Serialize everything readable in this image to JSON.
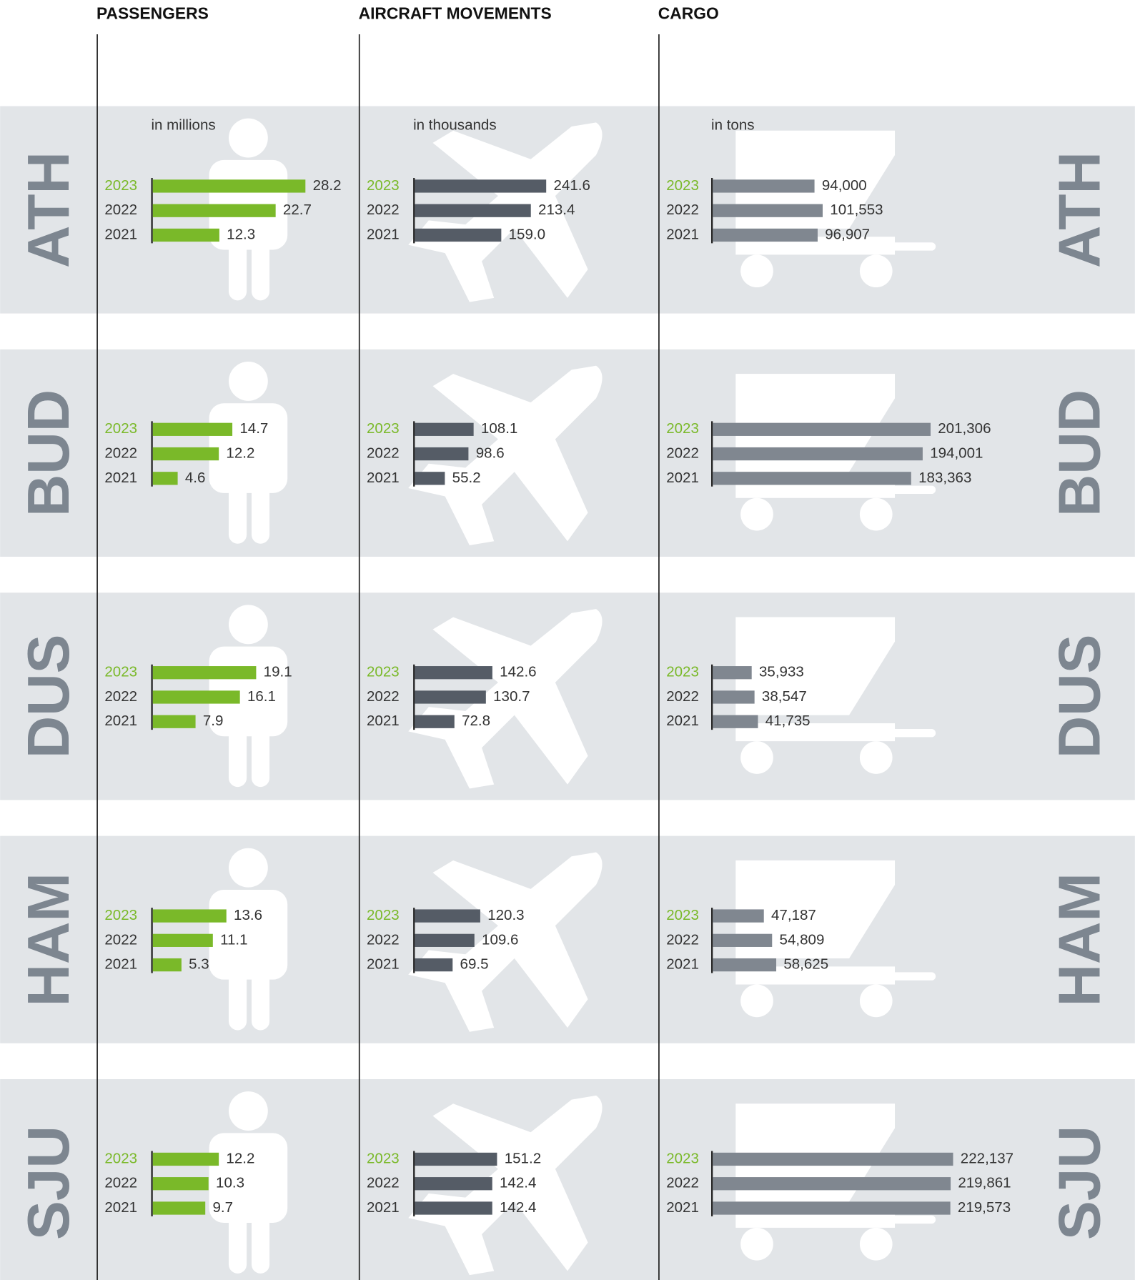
{
  "chart_data": {
    "type": "bar",
    "categories": [
      "2023",
      "2022",
      "2021"
    ],
    "metrics": [
      {
        "title": "PASSENGERS",
        "subtitle": "in millions",
        "color": "#7ab929"
      },
      {
        "title": "AIRCRAFT MOVEMENTS",
        "subtitle": "in thousands",
        "color": "#555c66"
      },
      {
        "title": "CARGO",
        "subtitle": "in tons",
        "color": "#808790"
      }
    ],
    "series": [
      {
        "name": "ATH",
        "values": [
          [
            28.2,
            22.7,
            12.3
          ],
          [
            241.6,
            213.4,
            159.0
          ],
          [
            94000,
            101553,
            96907
          ]
        ],
        "value_labels": [
          [
            "28.2",
            "22.7",
            "12.3"
          ],
          [
            "241.6",
            "213.4",
            "159.0"
          ],
          [
            "94,000",
            "101,553",
            "96,907"
          ]
        ]
      },
      {
        "name": "BUD",
        "values": [
          [
            14.7,
            12.2,
            4.6
          ],
          [
            108.1,
            98.6,
            55.2
          ],
          [
            201306,
            194001,
            183363
          ]
        ],
        "value_labels": [
          [
            "14.7",
            "12.2",
            "4.6"
          ],
          [
            "108.1",
            "98.6",
            "55.2"
          ],
          [
            "201,306",
            "194,001",
            "183,363"
          ]
        ]
      },
      {
        "name": "DUS",
        "values": [
          [
            19.1,
            16.1,
            7.9
          ],
          [
            142.6,
            130.7,
            72.8
          ],
          [
            35933,
            38547,
            41735
          ]
        ],
        "value_labels": [
          [
            "19.1",
            "16.1",
            "7.9"
          ],
          [
            "142.6",
            "130.7",
            "72.8"
          ],
          [
            "35,933",
            "38,547",
            "41,735"
          ]
        ]
      },
      {
        "name": "HAM",
        "values": [
          [
            13.6,
            11.1,
            5.3
          ],
          [
            120.3,
            109.6,
            69.5
          ],
          [
            47187,
            54809,
            58625
          ]
        ],
        "value_labels": [
          [
            "13.6",
            "11.1",
            "5.3"
          ],
          [
            "120.3",
            "109.6",
            "69.5"
          ],
          [
            "47,187",
            "54,809",
            "58,625"
          ]
        ]
      },
      {
        "name": "SJU",
        "values": [
          [
            12.2,
            10.3,
            9.7
          ],
          [
            151.2,
            142.4,
            142.4
          ],
          [
            222137,
            219861,
            219573
          ]
        ],
        "value_labels": [
          [
            "12.2",
            "10.3",
            "9.7"
          ],
          [
            "151.2",
            "142.4",
            "142.4"
          ],
          [
            "222,137",
            "219,861",
            "219,573"
          ]
        ]
      }
    ]
  }
}
